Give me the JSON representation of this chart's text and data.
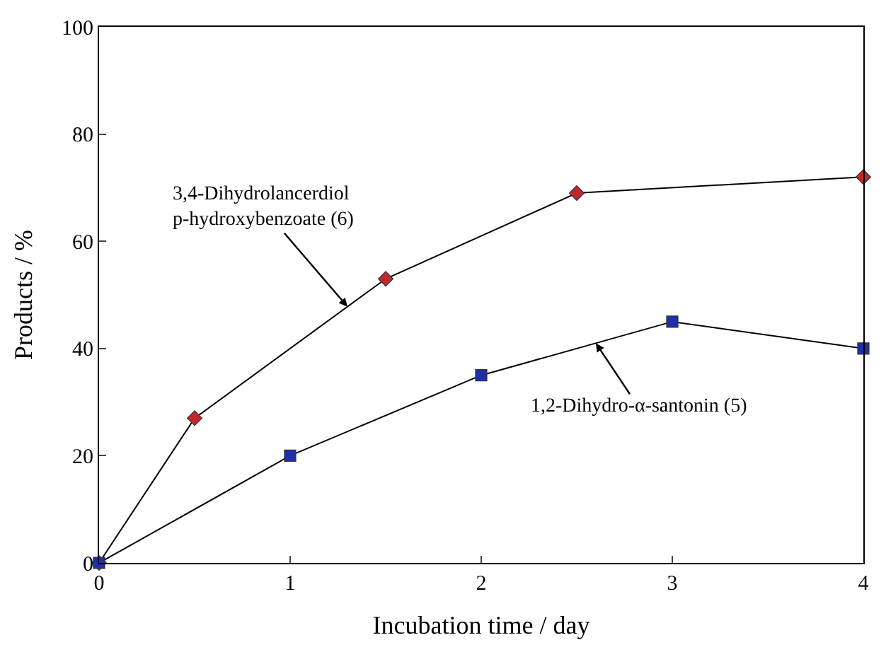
{
  "chart_data": {
    "type": "line",
    "xlabel": "Incubation time / day",
    "ylabel": "Products / %",
    "xlim": [
      0,
      4
    ],
    "ylim": [
      0,
      100
    ],
    "xticks": [
      0,
      1,
      2,
      3,
      4
    ],
    "yticks": [
      0,
      20,
      40,
      60,
      80,
      100
    ],
    "legend": false,
    "series": [
      {
        "name": "3,4-Dihydrolancerdiol\np-hydroxybenzoate (6)",
        "color": "#c0282d",
        "marker": "diamond",
        "x": [
          0,
          0.5,
          1.5,
          2.5,
          4
        ],
        "values": [
          0,
          27,
          53,
          69,
          72
        ]
      },
      {
        "name": "1,2-Dihydro-α-santonin (5)",
        "color": "#1f2fa8",
        "marker": "square",
        "x": [
          0,
          1,
          2,
          3,
          4
        ],
        "values": [
          0,
          20,
          35,
          45,
          40
        ]
      }
    ]
  }
}
